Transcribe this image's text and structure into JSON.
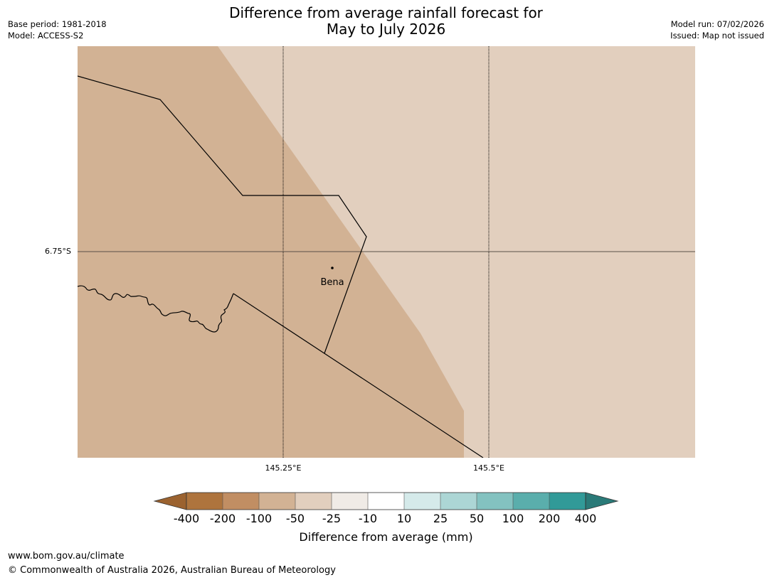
{
  "header": {
    "title_line1": "Difference from average rainfall forecast for",
    "title_line2": "May to July 2026",
    "base_period": "Base period: 1981-2018",
    "model": "Model: ACCESS-S2",
    "model_run": "Model run: 07/02/2026",
    "issued": "Issued: Map not issued"
  },
  "map": {
    "latitude_labels": [
      "6.75°S"
    ],
    "longitude_labels": [
      "145.25°E",
      "145.5°E"
    ],
    "places": [
      {
        "name": "Bena"
      }
    ],
    "colors": {
      "dry_-100_-50": "#d2b294",
      "dry_-50_-25": "#e2cfbe",
      "boundary": "#000000",
      "grid": "#000000"
    }
  },
  "colorbar": {
    "label": "Difference from average (mm)",
    "ticks": [
      "-400",
      "-200",
      "-100",
      "-50",
      "-25",
      "-10",
      "10",
      "25",
      "50",
      "100",
      "200",
      "400"
    ],
    "colors": {
      "below_-400": "#9b622f",
      "-400_-200": "#ae743d",
      "-200_-100": "#c18e63",
      "-100_-50": "#d2b294",
      "-50_-25": "#e2cfbe",
      "-25_-10": "#f0ebe6",
      "-10_10": "#ffffff",
      "10_25": "#d5eaea",
      "25_50": "#acd6d5",
      "50_100": "#83c2c0",
      "100_200": "#5aaeac",
      "200_400": "#319a98",
      "above_400": "#2a7a78"
    }
  },
  "footer": {
    "url": "www.bom.gov.au/climate",
    "copyright": "© Commonwealth of Australia 2026, Australian Bureau of Meteorology"
  }
}
